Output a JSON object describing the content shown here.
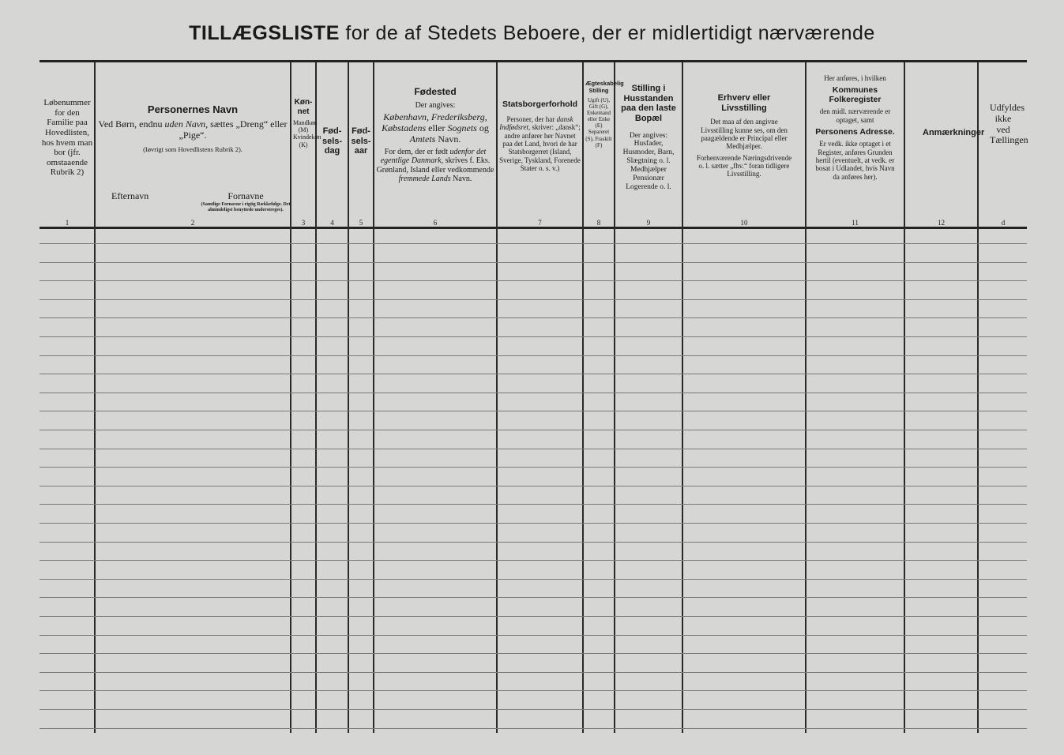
{
  "title": {
    "bold": "TILLÆGSLISTE",
    "rest": "for de af Stedets Beboere, der er midlertidigt nærværende"
  },
  "columns": [
    {
      "num": "1",
      "text": "Løbenummer for den Familie paa Hovedlisten, hos hvem man bor (jfr. omstaaende Rubrik 2)"
    },
    {
      "num": "2",
      "heading": "Personernes Navn",
      "text1": "Ved Børn, endnu",
      "italic": "uden Navn,",
      "text2": "sættes „Dreng“ eller „Pige“.",
      "note": "(Iøvrigt som Hovedlistens Rubrik 2).",
      "sub_left": "Efternavn",
      "sub_right": "Fornavne",
      "sub_right_note": "(Samtlige Fornavne i rigtig Rækkefølge. Det almindeligst benyttede understreges)."
    },
    {
      "num": "3",
      "heading": "Køn-net",
      "text": "Mandkøn (M) Kvindekøn (K)"
    },
    {
      "num": "4",
      "heading": "Fød-sels-dag"
    },
    {
      "num": "5",
      "heading": "Fød-sels-aar"
    },
    {
      "num": "6",
      "heading": "Fødested",
      "text1": "Der angives:",
      "italic1": "København, Frederiksberg, Købstadens",
      "text2": "eller",
      "italic2": "Sognets",
      "text3": "og",
      "italic3": "Amtets",
      "text4": "Navn.",
      "text5": "For dem, der er født",
      "italic5": "udenfor det egentlige Danmark,",
      "text6": "skrives f. Eks. Grønland, Island eller vedkommende",
      "italic6": "fremmede Lands",
      "text7": "Navn."
    },
    {
      "num": "7",
      "heading": "Statsborgerforhold",
      "text1": "Personer, der har",
      "italic": "dansk Indfødsret,",
      "text2": "skriver: „dansk“; andre anfører her Navnet paa det Land, hvori de har Statsborgerret (Island, Sverige, Tyskland, Forenede Stater o. s. v.)"
    },
    {
      "num": "8",
      "heading": "Ægteskabelig Stilling",
      "text": "Ugift (U), Gift (G), Enkemand eller Enke (E) Separeret (S), Fraskilt (F)"
    },
    {
      "num": "9",
      "heading": "Stilling i Husstanden paa den laste Bopæl",
      "text": "Der angives: Husfader, Husmoder, Barn, Slægtning o. l. Medhjælper Pensionær Logerende o. l."
    },
    {
      "num": "10",
      "heading": "Erhverv eller Livsstilling",
      "text1": "Det maa af den angivne Livsstilling kunne ses, om den paagældende er Principal eller Medhjælper.",
      "text2": "Forhenværende Næringsdrivende o. l. sætter „fhv.“ foran tidligere Livsstilling."
    },
    {
      "num": "11",
      "pre": "Her anføres, i hvilken",
      "heading": "Kommunes Folkeregister",
      "text1": "den midl. nærværende er optaget, samt",
      "heading2": "Personens Adresse.",
      "text2": "Er vedk. ikke optaget i et Register, anføres Grunden hertil (eventuelt, at vedk. er bosat i Udlandet, hvis Navn da anføres her)."
    },
    {
      "num": "12",
      "heading": "Anmærkninger"
    },
    {
      "num": "d",
      "text": "Udfyldes ikke ved Tællingen"
    }
  ]
}
